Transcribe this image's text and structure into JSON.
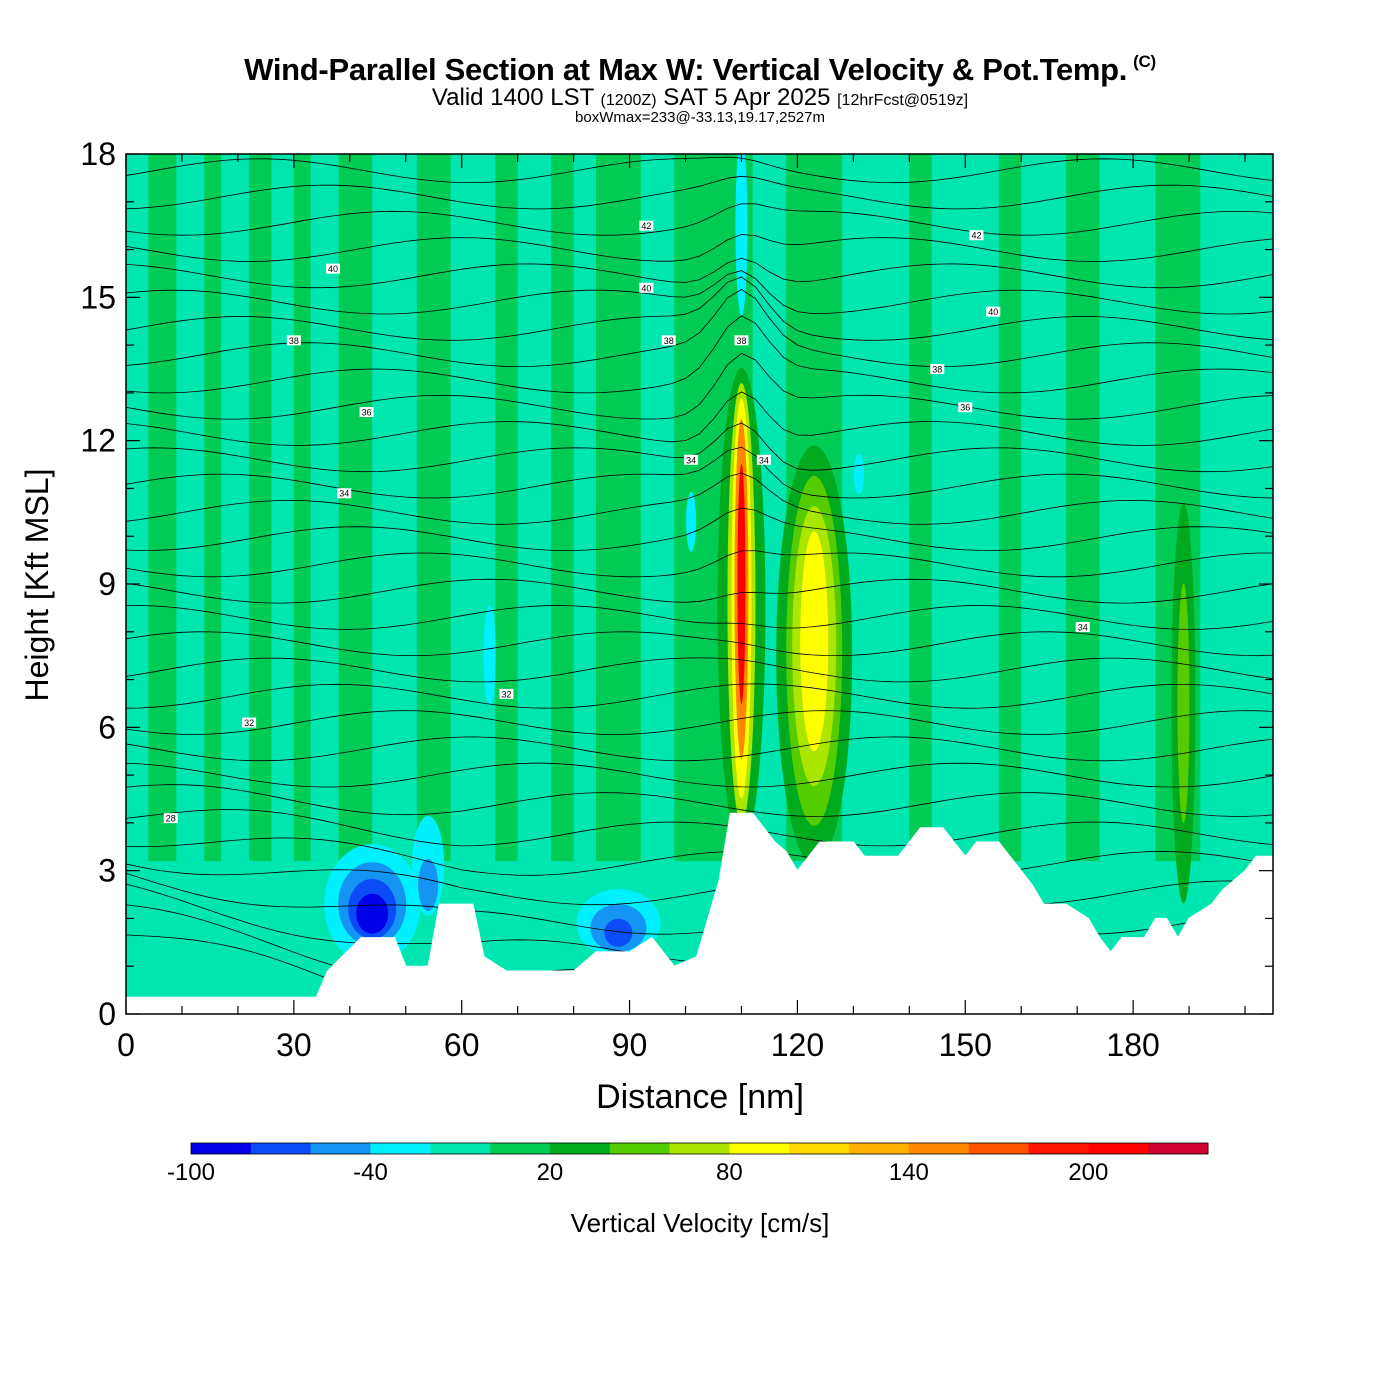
{
  "header": {
    "title": "Wind-Parallel Section at Max W: Vertical Velocity & Pot.Temp.",
    "copyright": "(C)",
    "valid_prefix": "Valid 1400 LST",
    "valid_utc": "(1200Z)",
    "valid_date": "SAT 5 Apr 2025",
    "forecast": "[12hrFcst@0519z]",
    "box_info": "boxWmax=233@-33.13,19.17,2527m"
  },
  "chart_data": {
    "type": "heatmap",
    "title": "Wind-Parallel Section at Max W: Vertical Velocity & Pot.Temp.",
    "xlabel": "Distance [nm]",
    "ylabel": "Height [Kft MSL]",
    "xlim": [
      0,
      205
    ],
    "ylim": [
      0,
      18
    ],
    "x_ticks": [
      "0",
      "30",
      "60",
      "90",
      "120",
      "150",
      "180"
    ],
    "y_ticks": [
      "0",
      "3",
      "6",
      "9",
      "12",
      "15",
      "18"
    ],
    "colorbar": {
      "label": "Vertical Velocity [cm/s]",
      "levels": [
        -100,
        -80,
        -60,
        -40,
        -20,
        0,
        20,
        40,
        60,
        80,
        100,
        120,
        140,
        160,
        180,
        200,
        220,
        240
      ],
      "tick_labels": [
        "-100",
        "-40",
        "20",
        "80",
        "140",
        "200"
      ],
      "colors": [
        "#0000e8",
        "#0a4cf5",
        "#1495f4",
        "#00f0ff",
        "#00e6b0",
        "#00cc55",
        "#00aa1e",
        "#55cc00",
        "#aae600",
        "#ffff00",
        "#ffd900",
        "#ffb000",
        "#ff8800",
        "#ff5500",
        "#ff1500",
        "#ff0000",
        "#d00030"
      ]
    },
    "terrain": [
      [
        0,
        0.35
      ],
      [
        28,
        0.35
      ],
      [
        34,
        0.35
      ],
      [
        36,
        0.9
      ],
      [
        42,
        1.6
      ],
      [
        48,
        1.6
      ],
      [
        50,
        1.0
      ],
      [
        54,
        1.0
      ],
      [
        56,
        2.3
      ],
      [
        62,
        2.3
      ],
      [
        64,
        1.2
      ],
      [
        68,
        0.9
      ],
      [
        80,
        0.9
      ],
      [
        84,
        1.3
      ],
      [
        90,
        1.3
      ],
      [
        94,
        1.6
      ],
      [
        98,
        1.0
      ],
      [
        102,
        1.2
      ],
      [
        106,
        2.8
      ],
      [
        108,
        4.2
      ],
      [
        112,
        4.2
      ],
      [
        116,
        3.6
      ],
      [
        118,
        3.4
      ],
      [
        120,
        3.0
      ],
      [
        122,
        3.3
      ],
      [
        124,
        3.6
      ],
      [
        130,
        3.6
      ],
      [
        132,
        3.3
      ],
      [
        138,
        3.3
      ],
      [
        140,
        3.6
      ],
      [
        142,
        3.9
      ],
      [
        146,
        3.9
      ],
      [
        148,
        3.6
      ],
      [
        150,
        3.3
      ],
      [
        152,
        3.6
      ],
      [
        156,
        3.6
      ],
      [
        158,
        3.3
      ],
      [
        162,
        2.7
      ],
      [
        164,
        2.3
      ],
      [
        168,
        2.3
      ],
      [
        172,
        2.0
      ],
      [
        174,
        1.6
      ],
      [
        176,
        1.3
      ],
      [
        178,
        1.6
      ],
      [
        182,
        1.6
      ],
      [
        184,
        2.0
      ],
      [
        186,
        2.0
      ],
      [
        188,
        1.6
      ],
      [
        190,
        2.0
      ],
      [
        194,
        2.3
      ],
      [
        196,
        2.6
      ],
      [
        200,
        3.0
      ],
      [
        202,
        3.3
      ],
      [
        205,
        3.3
      ]
    ],
    "vertical_velocity_features": [
      {
        "x": 44,
        "y": 2.2,
        "peak": -100,
        "label": "downdraft"
      },
      {
        "x": 54,
        "y": 3.0,
        "peak": -60,
        "label": "downdraft"
      },
      {
        "x": 88,
        "y": 1.8,
        "peak": -100,
        "label": "downdraft"
      },
      {
        "x": 110,
        "y": 8.5,
        "peak": 233,
        "label": "updraft core"
      },
      {
        "x": 123,
        "y": 7.5,
        "peak": 110,
        "label": "updraft"
      },
      {
        "x": 189,
        "y": 6.5,
        "peak": 50,
        "label": "updraft"
      }
    ],
    "pot_temp_contour_labels": [
      {
        "text": "28",
        "x": 8,
        "y": 4.1
      },
      {
        "text": "32",
        "x": 22,
        "y": 6.1
      },
      {
        "text": "32",
        "x": 68,
        "y": 6.7
      },
      {
        "text": "34",
        "x": 39,
        "y": 10.9
      },
      {
        "text": "34",
        "x": 101,
        "y": 11.6
      },
      {
        "text": "34",
        "x": 114,
        "y": 11.6
      },
      {
        "text": "34",
        "x": 171,
        "y": 8.1
      },
      {
        "text": "36",
        "x": 43,
        "y": 12.6
      },
      {
        "text": "36",
        "x": 150,
        "y": 12.7
      },
      {
        "text": "38",
        "x": 30,
        "y": 14.1
      },
      {
        "text": "38",
        "x": 97,
        "y": 14.1
      },
      {
        "text": "38",
        "x": 110,
        "y": 14.1
      },
      {
        "text": "38",
        "x": 145,
        "y": 13.5
      },
      {
        "text": "40",
        "x": 37,
        "y": 15.6
      },
      {
        "text": "40",
        "x": 93,
        "y": 15.2
      },
      {
        "text": "40",
        "x": 155,
        "y": 14.7
      },
      {
        "text": "42",
        "x": 93,
        "y": 16.5
      },
      {
        "text": "42",
        "x": 152,
        "y": 16.3
      }
    ]
  }
}
